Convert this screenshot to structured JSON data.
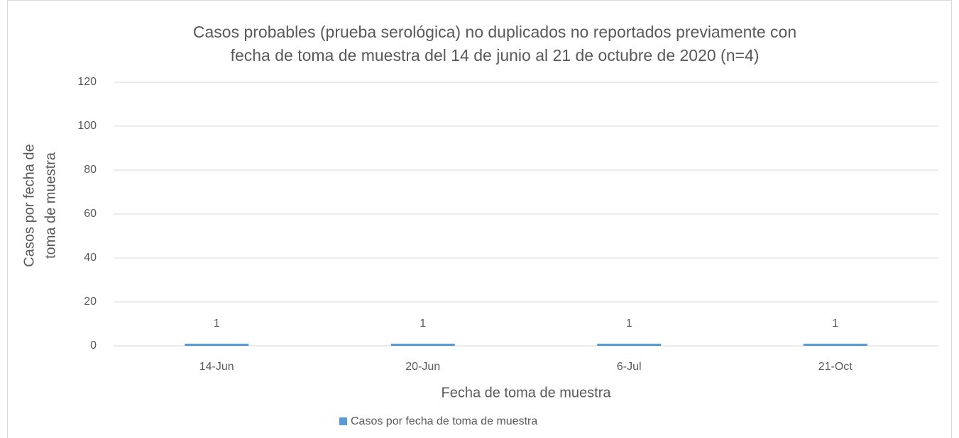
{
  "chart_data": {
    "type": "bar",
    "title": [
      "Casos probables (prueba serológica) no duplicados no reportados previamente con",
      "fecha de toma de muestra del 14 de junio al 21 de octubre de 2020 (n=4)"
    ],
    "x_label": "Fecha de toma de muestra",
    "y_label": [
      "Casos por fecha de",
      "toma de muestra"
    ],
    "categories": [
      "14-Jun",
      "20-Jun",
      "6-Jul",
      "21-Oct"
    ],
    "series": [
      {
        "name": "Casos por fecha de toma de muestra",
        "color": "#5b9bd5",
        "values": [
          1,
          1,
          1,
          1
        ]
      }
    ],
    "ylim": [
      0,
      120
    ],
    "yticks": [
      0,
      20,
      40,
      60,
      80,
      100,
      120
    ],
    "grid": true,
    "legend": "bottom"
  }
}
